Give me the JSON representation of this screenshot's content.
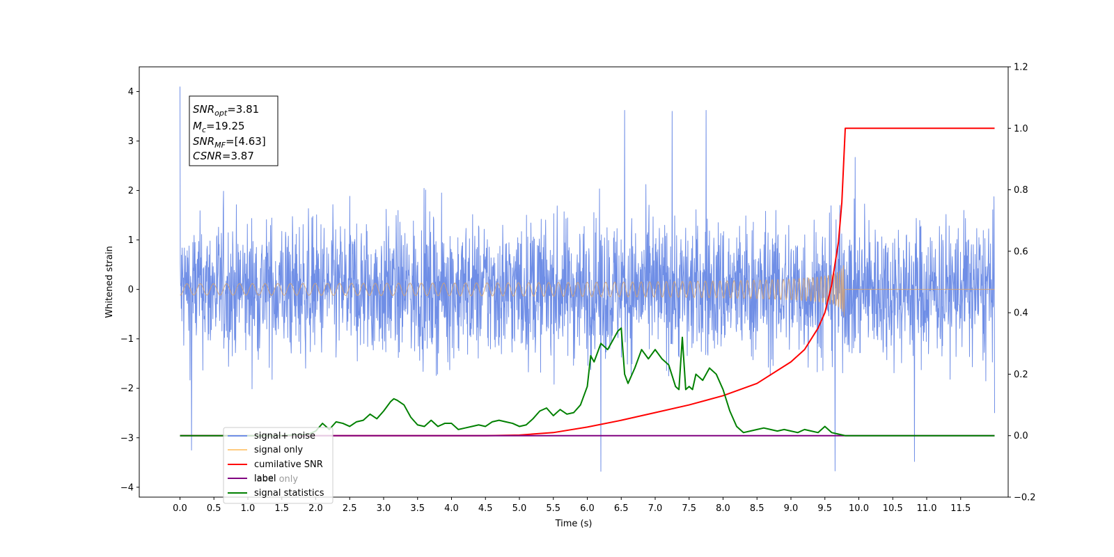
{
  "chart_data": {
    "type": "line",
    "xlabel": "Time (s)",
    "ylabel": "Whitened strain",
    "xlim": [
      -0.6,
      12.2
    ],
    "ylim": [
      -4.2,
      4.5
    ],
    "ylim_right": [
      -0.2,
      1.2
    ],
    "x_ticks": [
      "0.0",
      "0.5",
      "1.0",
      "1.5",
      "2.0",
      "2.5",
      "3.0",
      "3.5",
      "4.0",
      "4.5",
      "5.0",
      "5.5",
      "6.0",
      "6.5",
      "7.0",
      "7.5",
      "8.0",
      "8.5",
      "9.0",
      "9.5",
      "10.0",
      "10.5",
      "11.0",
      "11.5"
    ],
    "y_ticks": [
      "4",
      "3",
      "2",
      "1",
      "0",
      "−1",
      "−2",
      "−3",
      "−4"
    ],
    "y_right_ticks": [
      "1.2",
      "1.0",
      "0.8",
      "0.6",
      "0.4",
      "0.2",
      "0.0",
      "−0.2"
    ],
    "grid": false,
    "legend_placement": "lower-left",
    "annotation": [
      {
        "base": "SNR",
        "sub": "opt",
        "rest": "=3.81"
      },
      {
        "base": "M",
        "sub": "c",
        "rest": "=19.25"
      },
      {
        "base": "SNR",
        "sub": "MF",
        "rest": "=[4.63]"
      },
      {
        "base": "CSNR",
        "sub": "",
        "rest": "=3.87"
      }
    ],
    "series": [
      {
        "name": "signal+ noise",
        "color": "#6f8ee6",
        "axis": "left",
        "kind": "noise",
        "x_range": [
          0.0,
          12.0
        ],
        "envelope": [
          -2.6,
          2.6
        ],
        "extremes": [
          4.1,
          -3.7
        ],
        "spikes": [
          [
            0.0,
            4.1
          ],
          [
            0.17,
            -3.25
          ],
          [
            6.55,
            3.62
          ],
          [
            7.25,
            3.6
          ],
          [
            7.75,
            3.62
          ],
          [
            6.2,
            -3.68
          ],
          [
            9.65,
            -3.67
          ],
          [
            10.82,
            -3.48
          ],
          [
            12.0,
            -2.5
          ]
        ]
      },
      {
        "name": "signal only",
        "color": "#d4a373",
        "axis": "left",
        "kind": "chirp",
        "merger_time": 9.8,
        "peak_amplitude": 0.8
      },
      {
        "name": "cumilative SNR",
        "color": "#ff0000",
        "axis": "right",
        "x": [
          0.0,
          4.0,
          4.5,
          5.0,
          5.5,
          6.0,
          6.5,
          7.0,
          7.5,
          8.0,
          8.5,
          9.0,
          9.2,
          9.4,
          9.5,
          9.6,
          9.7,
          9.75,
          9.8,
          12.0
        ],
        "values": [
          0.0,
          0.0,
          0.0,
          0.002,
          0.01,
          0.028,
          0.05,
          0.075,
          0.1,
          0.13,
          0.17,
          0.24,
          0.28,
          0.35,
          0.4,
          0.49,
          0.63,
          0.76,
          1.0,
          1.0
        ]
      },
      {
        "name": "label",
        "color": "#800080",
        "axis": "right",
        "x": [
          0.0,
          12.0
        ],
        "values": [
          0.0,
          0.0
        ]
      },
      {
        "name": "label only",
        "color": "#800080",
        "axis": "right",
        "hidden_behind_legend": true,
        "x": [],
        "values": []
      },
      {
        "name": "signal statistics",
        "color": "#008000",
        "axis": "right",
        "x": [
          0.0,
          1.5,
          1.9,
          2.0,
          2.1,
          2.2,
          2.3,
          2.4,
          2.5,
          2.6,
          2.7,
          2.8,
          2.9,
          3.0,
          3.1,
          3.15,
          3.2,
          3.3,
          3.4,
          3.5,
          3.6,
          3.7,
          3.8,
          3.9,
          4.0,
          4.1,
          4.2,
          4.3,
          4.4,
          4.5,
          4.6,
          4.7,
          4.8,
          4.9,
          5.0,
          5.1,
          5.2,
          5.3,
          5.4,
          5.5,
          5.6,
          5.7,
          5.8,
          5.9,
          6.0,
          6.05,
          6.1,
          6.2,
          6.3,
          6.4,
          6.45,
          6.5,
          6.55,
          6.6,
          6.7,
          6.8,
          6.9,
          7.0,
          7.1,
          7.2,
          7.3,
          7.35,
          7.4,
          7.45,
          7.5,
          7.55,
          7.6,
          7.7,
          7.8,
          7.9,
          8.0,
          8.1,
          8.2,
          8.3,
          8.4,
          8.5,
          8.6,
          8.7,
          8.8,
          8.9,
          9.0,
          9.1,
          9.2,
          9.3,
          9.4,
          9.5,
          9.6,
          9.7,
          9.8,
          10.0,
          12.0
        ],
        "values": [
          0.0,
          0.0,
          0.005,
          0.015,
          0.04,
          0.02,
          0.045,
          0.04,
          0.03,
          0.045,
          0.05,
          0.07,
          0.055,
          0.08,
          0.11,
          0.12,
          0.115,
          0.1,
          0.06,
          0.035,
          0.03,
          0.05,
          0.03,
          0.04,
          0.04,
          0.02,
          0.025,
          0.03,
          0.035,
          0.03,
          0.045,
          0.05,
          0.045,
          0.04,
          0.03,
          0.035,
          0.055,
          0.08,
          0.09,
          0.065,
          0.085,
          0.07,
          0.075,
          0.1,
          0.16,
          0.26,
          0.24,
          0.3,
          0.28,
          0.32,
          0.34,
          0.35,
          0.2,
          0.17,
          0.22,
          0.28,
          0.25,
          0.28,
          0.25,
          0.23,
          0.16,
          0.15,
          0.32,
          0.15,
          0.16,
          0.15,
          0.2,
          0.18,
          0.22,
          0.2,
          0.15,
          0.08,
          0.03,
          0.01,
          0.015,
          0.02,
          0.025,
          0.02,
          0.015,
          0.02,
          0.015,
          0.01,
          0.02,
          0.015,
          0.01,
          0.03,
          0.01,
          0.005,
          0.0,
          0.0,
          0.0
        ]
      }
    ]
  }
}
